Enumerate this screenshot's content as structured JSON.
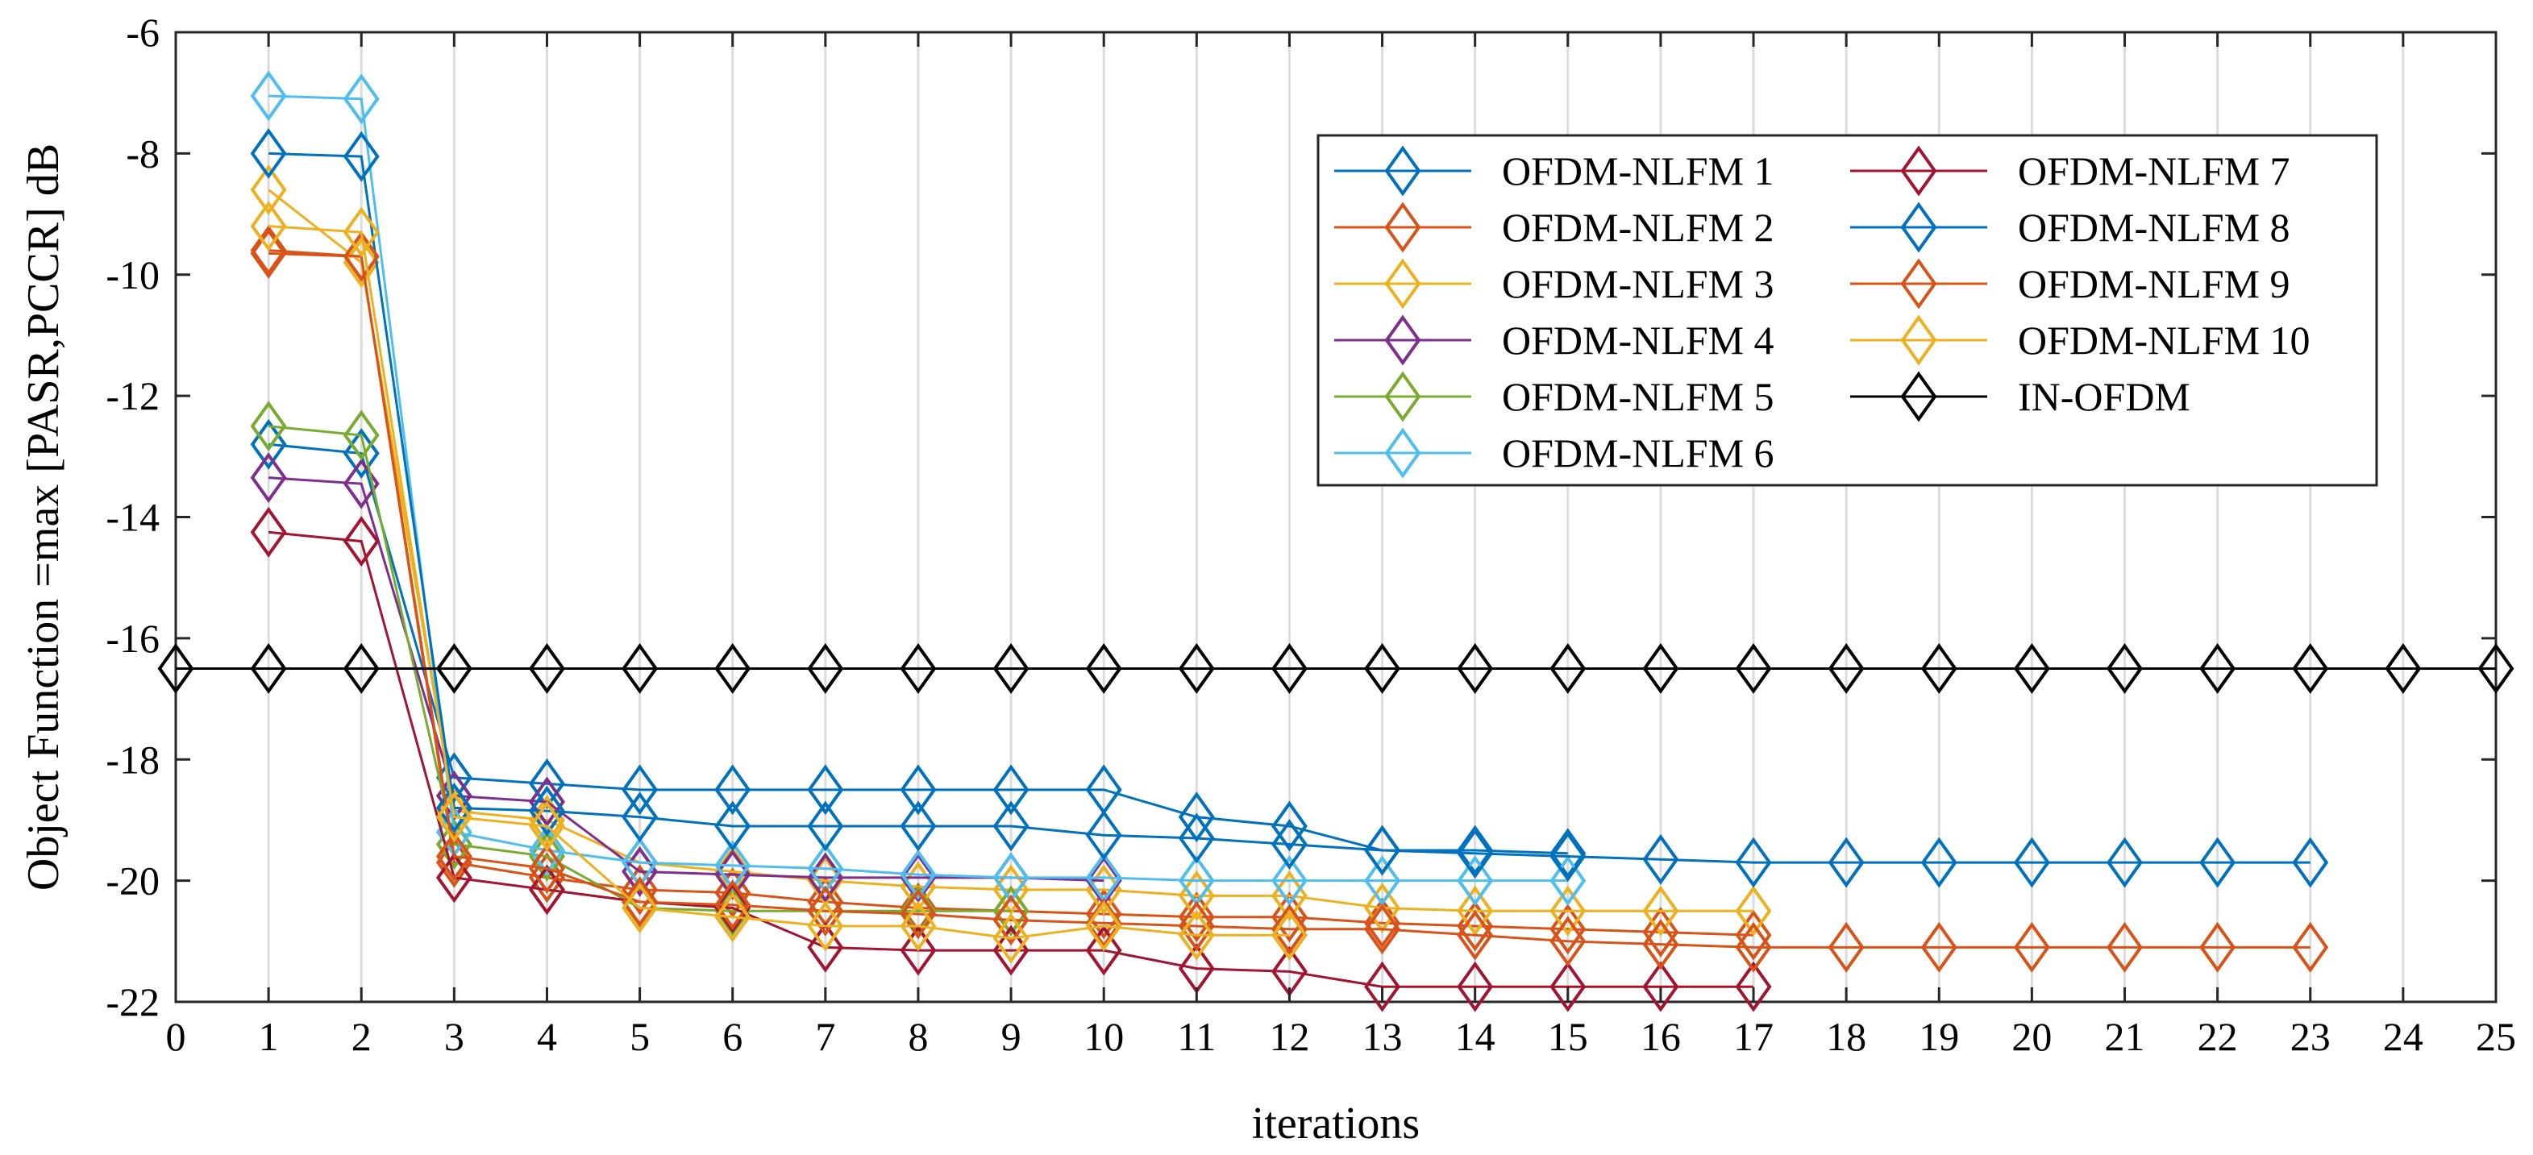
{
  "chart_data": {
    "type": "line",
    "title": "",
    "xlabel": "iterations",
    "ylabel": "Object Function =max [PASR,PCCR] dB",
    "xlim": [
      0,
      25
    ],
    "ylim": [
      -22,
      -6
    ],
    "xticks": [
      0,
      1,
      2,
      3,
      4,
      5,
      6,
      7,
      8,
      9,
      10,
      11,
      12,
      13,
      14,
      15,
      16,
      17,
      18,
      19,
      20,
      21,
      22,
      23,
      24,
      25
    ],
    "yticks": [
      -22,
      -20,
      -18,
      -16,
      -14,
      -12,
      -10,
      -8,
      -6
    ],
    "grid": "vertical",
    "legend_position": "top-right",
    "marker": "diamond",
    "series": [
      {
        "name": "OFDM-NLFM 1",
        "color": "#0072BD",
        "x": [
          1,
          2,
          3,
          4,
          5,
          6,
          7,
          8,
          9,
          10,
          11,
          12,
          13,
          14,
          15
        ],
        "y": [
          -12.8,
          -12.95,
          -18.3,
          -18.4,
          -18.5,
          -18.5,
          -18.5,
          -18.5,
          -18.5,
          -18.5,
          -18.95,
          -19.1,
          -19.5,
          -19.5,
          -19.55
        ]
      },
      {
        "name": "OFDM-NLFM 2",
        "color": "#D95319",
        "x": [
          1,
          2,
          3,
          4,
          5,
          6,
          7,
          8,
          9,
          10,
          11,
          12,
          13,
          14,
          15,
          16,
          17
        ],
        "y": [
          -9.65,
          -9.7,
          -19.7,
          -19.95,
          -20.15,
          -20.2,
          -20.35,
          -20.45,
          -20.5,
          -20.55,
          -20.6,
          -20.6,
          -20.7,
          -20.75,
          -20.8,
          -20.85,
          -20.9
        ]
      },
      {
        "name": "OFDM-NLFM 3",
        "color": "#EDB120",
        "x": [
          1,
          2,
          3,
          4,
          5,
          6,
          7,
          8,
          9,
          10,
          11,
          12,
          13,
          14,
          15,
          16,
          17
        ],
        "y": [
          -8.6,
          -9.8,
          -18.85,
          -19.0,
          -19.7,
          -19.85,
          -20.0,
          -20.1,
          -20.15,
          -20.15,
          -20.25,
          -20.25,
          -20.45,
          -20.5,
          -20.5,
          -20.5,
          -20.5
        ]
      },
      {
        "name": "OFDM-NLFM 4",
        "color": "#7E2F8E",
        "x": [
          1,
          2,
          3,
          4,
          5,
          6,
          7,
          8,
          9,
          10
        ],
        "y": [
          -13.35,
          -13.45,
          -18.6,
          -18.7,
          -19.85,
          -19.9,
          -19.95,
          -19.95,
          -19.95,
          -20.0
        ]
      },
      {
        "name": "OFDM-NLFM 5",
        "color": "#77AC30",
        "x": [
          1,
          2,
          3,
          4,
          5,
          6,
          7,
          8,
          9
        ],
        "y": [
          -12.5,
          -12.65,
          -19.4,
          -19.6,
          -20.45,
          -20.5,
          -20.5,
          -20.5,
          -20.5
        ]
      },
      {
        "name": "OFDM-NLFM 6",
        "color": "#4DBEEE",
        "x": [
          1,
          2,
          3,
          4,
          5,
          6,
          7,
          8,
          9,
          10,
          11,
          12,
          13,
          14,
          15
        ],
        "y": [
          -7.05,
          -7.1,
          -19.2,
          -19.5,
          -19.7,
          -19.75,
          -19.8,
          -19.9,
          -19.95,
          -19.95,
          -20.0,
          -20.0,
          -20.0,
          -20.0,
          -20.0
        ]
      },
      {
        "name": "OFDM-NLFM 7",
        "color": "#A2142F",
        "x": [
          1,
          2,
          3,
          4,
          5,
          6,
          7,
          8,
          9,
          10,
          11,
          12,
          13,
          14,
          15,
          16,
          17
        ],
        "y": [
          -14.25,
          -14.4,
          -19.95,
          -20.15,
          -20.35,
          -20.45,
          -21.1,
          -21.15,
          -21.15,
          -21.15,
          -21.45,
          -21.5,
          -21.75,
          -21.75,
          -21.75,
          -21.75,
          -21.75
        ]
      },
      {
        "name": "OFDM-NLFM 8",
        "color": "#0072BD",
        "x": [
          1,
          2,
          3,
          4,
          5,
          6,
          7,
          8,
          9,
          10,
          11,
          12,
          13,
          14,
          15,
          16,
          17,
          18,
          19,
          20,
          21,
          22,
          23
        ],
        "y": [
          -8.0,
          -8.05,
          -18.8,
          -18.85,
          -18.95,
          -19.1,
          -19.1,
          -19.1,
          -19.1,
          -19.25,
          -19.3,
          -19.4,
          -19.5,
          -19.55,
          -19.6,
          -19.65,
          -19.7,
          -19.7,
          -19.7,
          -19.7,
          -19.7,
          -19.7,
          -19.7
        ]
      },
      {
        "name": "OFDM-NLFM 9",
        "color": "#D95319",
        "x": [
          1,
          2,
          3,
          4,
          5,
          6,
          7,
          8,
          9,
          10,
          11,
          12,
          13,
          14,
          15,
          16,
          17,
          18,
          19,
          20,
          21,
          22,
          23
        ],
        "y": [
          -9.6,
          -9.7,
          -19.6,
          -19.8,
          -20.35,
          -20.4,
          -20.5,
          -20.55,
          -20.65,
          -20.7,
          -20.75,
          -20.8,
          -20.8,
          -20.9,
          -21.0,
          -21.05,
          -21.1,
          -21.1,
          -21.1,
          -21.1,
          -21.1,
          -21.1,
          -21.1
        ]
      },
      {
        "name": "OFDM-NLFM 10",
        "color": "#EDB120",
        "x": [
          1,
          2,
          3,
          4,
          5,
          6,
          7,
          8,
          9,
          10,
          11,
          12
        ],
        "y": [
          -9.2,
          -9.3,
          -18.95,
          -19.1,
          -20.45,
          -20.6,
          -20.75,
          -20.75,
          -20.95,
          -20.75,
          -20.9,
          -20.9
        ]
      },
      {
        "name": "IN-OFDM",
        "color": "#000000",
        "x": [
          0,
          1,
          2,
          3,
          4,
          5,
          6,
          7,
          8,
          9,
          10,
          11,
          12,
          13,
          14,
          15,
          16,
          17,
          18,
          19,
          20,
          21,
          22,
          23,
          24,
          25
        ],
        "y": [
          -16.5,
          -16.5,
          -16.5,
          -16.5,
          -16.5,
          -16.5,
          -16.5,
          -16.5,
          -16.5,
          -16.5,
          -16.5,
          -16.5,
          -16.5,
          -16.5,
          -16.5,
          -16.5,
          -16.5,
          -16.5,
          -16.5,
          -16.5,
          -16.5,
          -16.5,
          -16.5,
          -16.5,
          -16.5,
          -16.5
        ]
      }
    ]
  }
}
